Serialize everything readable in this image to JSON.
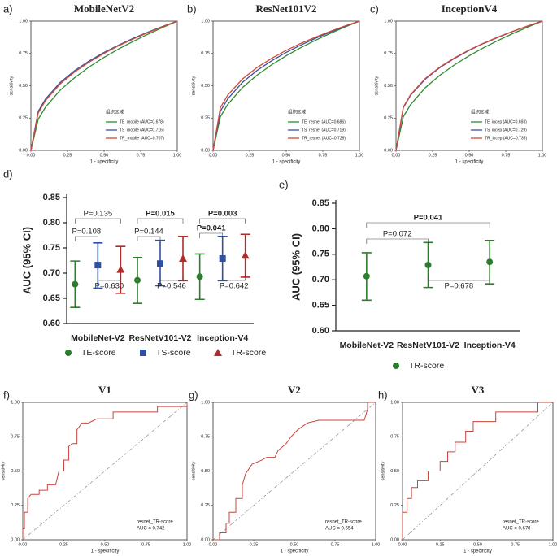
{
  "chart_data": [
    {
      "type": "roc",
      "panel_label": "a)",
      "title": "MobileNetV2",
      "xlabel": "1 - specificity",
      "ylabel": "sensitivity",
      "legend_title": "组织区域",
      "x": [
        0,
        0.05,
        0.1,
        0.2,
        0.3,
        0.4,
        0.5,
        0.6,
        0.7,
        0.8,
        0.9,
        1
      ],
      "series": [
        {
          "name": "TE_mobile (AUC=0.678)",
          "color": "#2e8b2e",
          "values": [
            0,
            0.241,
            0.335,
            0.466,
            0.564,
            0.647,
            0.72,
            0.785,
            0.844,
            0.899,
            0.951,
            1
          ]
        },
        {
          "name": "TS_mobile (AUC=0.716)",
          "color": "#3b4fa0",
          "values": [
            0,
            0.302,
            0.398,
            0.525,
            0.618,
            0.693,
            0.758,
            0.815,
            0.867,
            0.915,
            0.959,
            1
          ]
        },
        {
          "name": "TR_mobile (AUC=0.707)",
          "color": "#d0483c",
          "values": [
            0,
            0.289,
            0.386,
            0.514,
            0.608,
            0.684,
            0.751,
            0.81,
            0.862,
            0.912,
            0.957,
            1
          ]
        }
      ],
      "xlim": [
        0,
        1
      ],
      "ylim": [
        0,
        1
      ],
      "xticks": [
        {
          "value": 0,
          "label": "0.00"
        },
        0.25,
        {
          "value": 0.5,
          "label": "0.50"
        },
        0.75,
        {
          "value": 1,
          "label": "1.00"
        }
      ],
      "yticks": [
        {
          "value": 0,
          "label": "0.00"
        },
        0.25,
        {
          "value": 0.5,
          "label": "0.50"
        },
        0.75,
        {
          "value": 1,
          "label": "1.00"
        }
      ]
    },
    {
      "type": "roc",
      "panel_label": "b)",
      "title": "ResNet101V2",
      "xlabel": "1 - specificity",
      "ylabel": "sensitivity",
      "legend_title": "组织区域",
      "x": [
        0,
        0.05,
        0.1,
        0.2,
        0.3,
        0.4,
        0.5,
        0.6,
        0.7,
        0.8,
        0.9,
        1
      ],
      "series": [
        {
          "name": "TE_resnet (AUC=0.686)",
          "color": "#2e8b2e",
          "values": [
            0,
            0.26,
            0.355,
            0.485,
            0.582,
            0.662,
            0.732,
            0.795,
            0.852,
            0.905,
            0.954,
            1
          ]
        },
        {
          "name": "TS_resnet (AUC=0.719)",
          "color": "#3b4fa0",
          "values": [
            0,
            0.302,
            0.398,
            0.525,
            0.618,
            0.693,
            0.758,
            0.815,
            0.867,
            0.915,
            0.959,
            1
          ]
        },
        {
          "name": "TR_resnet (AUC=0.729)",
          "color": "#d0483c",
          "values": [
            0,
            0.33,
            0.427,
            0.551,
            0.641,
            0.712,
            0.774,
            0.828,
            0.876,
            0.921,
            0.962,
            1
          ]
        }
      ],
      "xlim": [
        0,
        1
      ],
      "ylim": [
        0,
        1
      ],
      "xticks": [
        {
          "value": 0,
          "label": "0.00"
        },
        0.25,
        {
          "value": 0.5,
          "label": "0.50"
        },
        0.75,
        {
          "value": 1,
          "label": "1.00"
        }
      ],
      "yticks": [
        {
          "value": 0,
          "label": "0.00"
        },
        0.25,
        {
          "value": 0.5,
          "label": "0.50"
        },
        0.75,
        {
          "value": 1,
          "label": "1.00"
        }
      ]
    },
    {
      "type": "roc",
      "panel_label": "c)",
      "title": "InceptionV4",
      "xlabel": "1 - specificity",
      "ylabel": "sensitivity",
      "legend_title": "组织区域",
      "x": [
        0,
        0.05,
        0.1,
        0.2,
        0.3,
        0.4,
        0.5,
        0.6,
        0.7,
        0.8,
        0.9,
        1
      ],
      "series": [
        {
          "name": "TE_incep (AUC=0.693)",
          "color": "#2e8b2e",
          "values": [
            0,
            0.26,
            0.355,
            0.485,
            0.582,
            0.662,
            0.732,
            0.795,
            0.852,
            0.905,
            0.954,
            1
          ]
        },
        {
          "name": "TS_incep (AUC=0.729)",
          "color": "#3b4fa0",
          "values": [
            0,
            0.33,
            0.427,
            0.551,
            0.641,
            0.712,
            0.774,
            0.828,
            0.876,
            0.921,
            0.962,
            1
          ]
        },
        {
          "name": "TR_incep (AUC=0.735)",
          "color": "#d0483c",
          "values": [
            0,
            0.335,
            0.432,
            0.556,
            0.645,
            0.716,
            0.777,
            0.83,
            0.878,
            0.922,
            0.963,
            1
          ]
        }
      ],
      "xlim": [
        0,
        1
      ],
      "ylim": [
        0,
        1
      ],
      "xticks": [
        {
          "value": 0,
          "label": "0.00"
        },
        0.25,
        {
          "value": 0.5,
          "label": "0.50"
        },
        0.75,
        {
          "value": 1,
          "label": "1.00"
        }
      ],
      "yticks": [
        {
          "value": 0,
          "label": "0.00"
        },
        0.25,
        {
          "value": 0.5,
          "label": "0.50"
        },
        0.75,
        {
          "value": 1,
          "label": "1.00"
        }
      ]
    },
    {
      "type": "errorbar",
      "panel_label": "d)",
      "ylabel": "AUC (95% CI)",
      "categories": [
        "MobileNet-V2",
        "ResNetV101-V2",
        "Inception-V4"
      ],
      "series": [
        {
          "name": "TE-score",
          "color": "#2e7d2e",
          "marker": "circle",
          "values": [
            0.678,
            0.686,
            0.693
          ],
          "lower": [
            0.632,
            0.64,
            0.648
          ],
          "upper": [
            0.724,
            0.731,
            0.738
          ]
        },
        {
          "name": "TS-score",
          "color": "#2f4f9f",
          "marker": "square",
          "values": [
            0.716,
            0.719,
            0.729
          ],
          "lower": [
            0.67,
            0.675,
            0.685
          ],
          "upper": [
            0.76,
            0.765,
            0.773
          ]
        },
        {
          "name": "TR-score",
          "color": "#b22a2a",
          "marker": "triangle",
          "values": [
            0.707,
            0.729,
            0.735
          ],
          "lower": [
            0.66,
            0.685,
            0.692
          ],
          "upper": [
            0.753,
            0.773,
            0.777
          ]
        }
      ],
      "ylim": [
        0.6,
        0.85
      ],
      "yticks": [
        {
          "value": 0.6,
          "label": "0.60"
        },
        0.65,
        {
          "value": 0.7,
          "label": "0.70"
        },
        0.75,
        {
          "value": 0.8,
          "label": "0.80"
        },
        0.85
      ],
      "annotations": [
        {
          "text": "P=0.135",
          "bold": false
        },
        {
          "text": "P=0.108",
          "bold": false
        },
        {
          "text": "P=0.630",
          "bold": false
        },
        {
          "text": "P=0.015",
          "bold": true
        },
        {
          "text": "P=0.144",
          "bold": false
        },
        {
          "text": "P=0.546",
          "bold": false
        },
        {
          "text": "P=0.003",
          "bold": true
        },
        {
          "text": "P=0.041",
          "bold": true
        },
        {
          "text": "P=0.642",
          "bold": false
        }
      ]
    },
    {
      "type": "errorbar",
      "panel_label": "e)",
      "ylabel": "AUC (95% CI)",
      "categories": [
        "MobileNet-V2",
        "ResNetV101-V2",
        "Inception-V4"
      ],
      "series": [
        {
          "name": "TR-score",
          "color": "#2e7d2e",
          "marker": "circle",
          "values": [
            0.707,
            0.729,
            0.735
          ],
          "lower": [
            0.66,
            0.685,
            0.692
          ],
          "upper": [
            0.753,
            0.773,
            0.777
          ]
        }
      ],
      "ylim": [
        0.6,
        0.85
      ],
      "yticks": [
        {
          "value": 0.6,
          "label": "0.60"
        },
        0.65,
        {
          "value": 0.7,
          "label": "0.70"
        },
        0.75,
        {
          "value": 0.8,
          "label": "0.80"
        },
        0.85
      ],
      "annotations": [
        {
          "text": "P=0.041",
          "bold": true
        },
        {
          "text": "P=0.072",
          "bold": false
        },
        {
          "text": "P=0.678",
          "bold": false
        }
      ]
    },
    {
      "type": "step_roc",
      "panel_label": "f)",
      "title": "V1",
      "xlabel": "1 - specificity",
      "ylabel": "sensitivity",
      "color": "#c8463c",
      "x": [
        0,
        0,
        0.01,
        0.01,
        0.03,
        0.03,
        0.05,
        0.1,
        0.1,
        0.15,
        0.15,
        0.2,
        0.22,
        0.25,
        0.25,
        0.28,
        0.28,
        0.3,
        0.33,
        0.33,
        0.36,
        0.4,
        0.45,
        0.55,
        0.55,
        0.82,
        0.82,
        1,
        1
      ],
      "values": [
        0,
        0.08,
        0.08,
        0.2,
        0.2,
        0.3,
        0.33,
        0.33,
        0.36,
        0.36,
        0.4,
        0.4,
        0.5,
        0.5,
        0.58,
        0.58,
        0.68,
        0.7,
        0.7,
        0.8,
        0.85,
        0.85,
        0.88,
        0.88,
        0.93,
        0.93,
        0.97,
        0.97,
        1
      ],
      "xlim": [
        0,
        1
      ],
      "ylim": [
        0,
        1
      ],
      "xticks": [
        {
          "value": 0,
          "label": "0.00"
        },
        0.25,
        {
          "value": 0.5,
          "label": "0.50"
        },
        0.75,
        {
          "value": 1,
          "label": "1.00"
        }
      ],
      "yticks": [
        {
          "value": 0,
          "label": "0.00"
        },
        0.25,
        {
          "value": 0.5,
          "label": "0.50"
        },
        0.75,
        {
          "value": 1,
          "label": "1.00"
        }
      ],
      "annotations": [
        "resnet_TR-score",
        "AUC = 0.742"
      ]
    },
    {
      "type": "step_roc",
      "panel_label": "g)",
      "title": "V2",
      "xlabel": "1 - specificity",
      "ylabel": "sensitivity",
      "color": "#c8463c",
      "x": [
        0,
        0.04,
        0.04,
        0.08,
        0.08,
        0.1,
        0.1,
        0.14,
        0.14,
        0.18,
        0.18,
        0.2,
        0.24,
        0.3,
        0.33,
        0.38,
        0.4,
        0.45,
        0.48,
        0.52,
        0.58,
        0.65,
        0.93,
        0.95,
        0.95,
        1
      ],
      "values": [
        0,
        0,
        0.05,
        0.05,
        0.12,
        0.12,
        0.2,
        0.2,
        0.3,
        0.3,
        0.4,
        0.48,
        0.55,
        0.58,
        0.6,
        0.6,
        0.65,
        0.7,
        0.75,
        0.8,
        0.85,
        0.87,
        0.87,
        0.95,
        1,
        1
      ],
      "xlim": [
        0,
        1
      ],
      "ylim": [
        0,
        1
      ],
      "xticks": [
        {
          "value": 0,
          "label": "0.00"
        },
        0.25,
        {
          "value": 0.5,
          "label": "0.50"
        },
        0.75,
        {
          "value": 1,
          "label": "1.00"
        }
      ],
      "yticks": [
        {
          "value": 0,
          "label": "0.00"
        },
        0.25,
        {
          "value": 0.5,
          "label": "0.50"
        },
        0.75,
        {
          "value": 1,
          "label": "1.00"
        }
      ],
      "annotations": [
        "resnet_TR-score",
        "AUC = 0.654"
      ]
    },
    {
      "type": "step_roc",
      "panel_label": "h)",
      "title": "V3",
      "xlabel": "1 - specificity",
      "ylabel": "sensitivity",
      "color": "#c8463c",
      "x": [
        0,
        0,
        0.03,
        0.03,
        0.06,
        0.06,
        0.1,
        0.1,
        0.17,
        0.17,
        0.25,
        0.25,
        0.3,
        0.3,
        0.35,
        0.35,
        0.42,
        0.42,
        0.47,
        0.47,
        0.62,
        0.62,
        0.9,
        0.9,
        1
      ],
      "values": [
        0,
        0.2,
        0.2,
        0.3,
        0.3,
        0.38,
        0.38,
        0.43,
        0.43,
        0.5,
        0.5,
        0.57,
        0.57,
        0.64,
        0.64,
        0.71,
        0.71,
        0.79,
        0.79,
        0.86,
        0.86,
        0.93,
        0.93,
        1,
        1
      ],
      "xlim": [
        0,
        1
      ],
      "ylim": [
        0,
        1
      ],
      "xticks": [
        {
          "value": 0,
          "label": "0.00"
        },
        0.25,
        {
          "value": 0.5,
          "label": "0.50"
        },
        0.75,
        {
          "value": 1,
          "label": "1.00"
        }
      ],
      "yticks": [
        {
          "value": 0,
          "label": "0.00"
        },
        0.25,
        {
          "value": 0.5,
          "label": "0.50"
        },
        0.75,
        {
          "value": 1,
          "label": "1.00"
        }
      ],
      "annotations": [
        "resnet_TR-score",
        "AUC = 0.678"
      ]
    }
  ]
}
